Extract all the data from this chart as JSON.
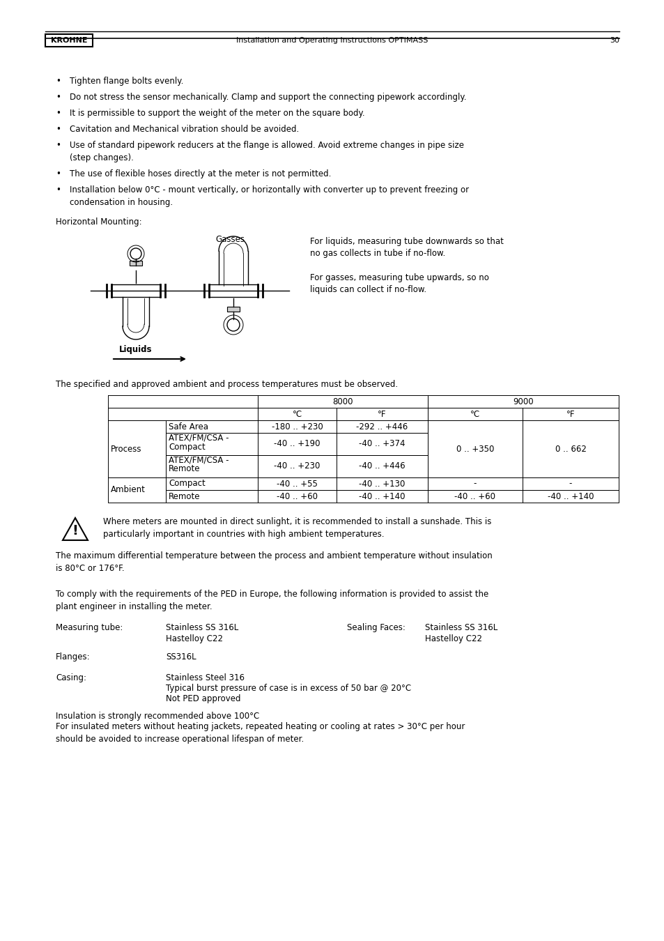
{
  "bg_color": "#ffffff",
  "bullet_points": [
    "Tighten flange bolts evenly.",
    "Do not stress the sensor mechanically. Clamp and support the connecting pipework accordingly.",
    "It is permissible to support the weight of the meter on the square body.",
    "Cavitation and Mechanical vibration should be avoided.",
    "Use of standard pipework reducers at the flange is allowed. Avoid extreme changes in pipe size\n    (step changes).",
    "The use of flexible hoses directly at the meter is not permitted.",
    "Installation below 0°C - mount vertically, or horizontally with converter up to prevent freezing or\n    condensation in housing."
  ],
  "horiz_mounting_label": "Horizontal Mounting:",
  "gasses_label": "Gasses",
  "liquids_label": "Liquids",
  "gas_liquid_text1": "For liquids, measuring tube downwards so that\nno gas collects in tube if no-flow.",
  "gas_liquid_text2": "For gasses, measuring tube upwards, so no\nliquids can collect if no-flow.",
  "temp_intro": "The specified and approved ambient and process temperatures must be observed.",
  "warning_text": "Where meters are mounted in direct sunlight, it is recommended to install a sunshade. This is\nparticularly important in countries with high ambient temperatures.",
  "max_diff_text": "The maximum differential temperature between the process and ambient temperature without insulation\nis 80°C or 176°F.",
  "ped_intro": "To comply with the requirements of the PED in Europe, the following information is provided to assist the\nplant engineer in installing the meter.",
  "measuring_tube_label": "Measuring tube:",
  "measuring_tube_val1": "Stainless SS 316L",
  "measuring_tube_val2": "Hastelloy C22",
  "sealing_faces_label": "Sealing Faces:",
  "sealing_faces_val1": "Stainless SS 316L",
  "sealing_faces_val2": "Hastelloy C22",
  "flanges_label": "Flanges:",
  "flanges_val": "SS316L",
  "casing_label": "Casing:",
  "casing_val1": "Stainless Steel 316",
  "casing_val2": "Typical burst pressure of case is in excess of 50 bar @ 20°C",
  "casing_val3": "Not PED approved",
  "insulation_text1": "Insulation is strongly recommended above 100°C",
  "insulation_text2": "For insulated meters without heating jackets, repeated heating or cooling at rates > 30°C per hour\nshould be avoided to increase operational lifespan of meter.",
  "footer_brand": "KROHNE",
  "footer_center": "Installation and Operating Instructions OPTIMASS",
  "footer_page": "30"
}
